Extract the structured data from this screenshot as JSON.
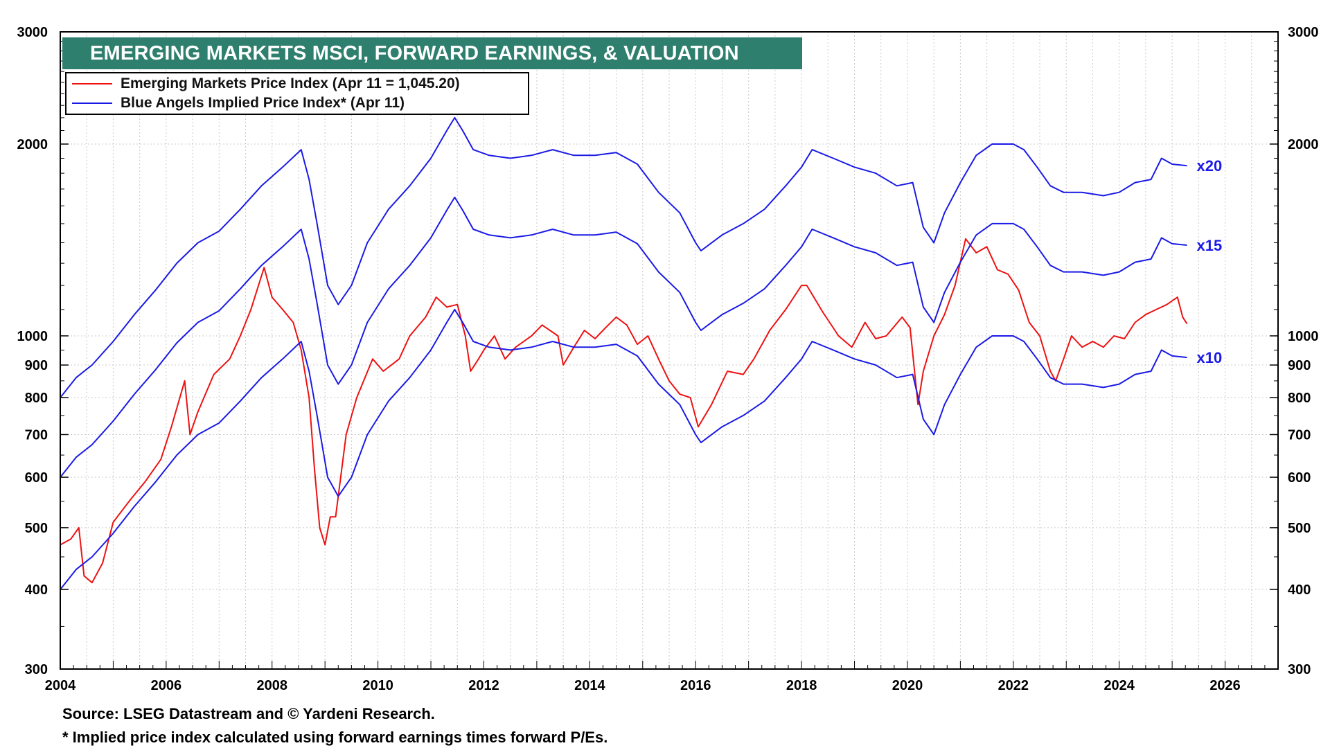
{
  "chart_data": {
    "type": "line",
    "title": "EMERGING MARKETS MSCI, FORWARD EARNINGS, & VALUATION",
    "y_scale": "log",
    "ylim": [
      300,
      3000
    ],
    "xlim": [
      2004,
      2027
    ],
    "y_ticks": [
      300,
      400,
      500,
      600,
      700,
      800,
      900,
      1000,
      2000,
      3000
    ],
    "x_ticks": [
      2004,
      2006,
      2008,
      2010,
      2012,
      2014,
      2016,
      2018,
      2020,
      2022,
      2024,
      2026
    ],
    "grid": true,
    "legend_position": "top-left",
    "legend": [
      {
        "label": "Emerging Markets Price Index (Apr 11 = 1,045.20)",
        "color": "#ee1111"
      },
      {
        "label": "Blue Angels Implied Price Index* (Apr 11)",
        "color": "#1a1ae6"
      }
    ],
    "series": [
      {
        "name": "Emerging Markets Price Index",
        "color": "#ee1111",
        "x": [
          2004.0,
          2004.2,
          2004.35,
          2004.45,
          2004.6,
          2004.8,
          2005.0,
          2005.3,
          2005.6,
          2005.9,
          2006.1,
          2006.35,
          2006.45,
          2006.6,
          2006.9,
          2007.2,
          2007.4,
          2007.6,
          2007.85,
          2008.0,
          2008.2,
          2008.4,
          2008.55,
          2008.7,
          2008.8,
          2008.9,
          2009.0,
          2009.1,
          2009.2,
          2009.4,
          2009.6,
          2009.9,
          2010.1,
          2010.4,
          2010.6,
          2010.9,
          2011.1,
          2011.3,
          2011.5,
          2011.65,
          2011.75,
          2011.9,
          2012.0,
          2012.2,
          2012.4,
          2012.6,
          2012.9,
          2013.1,
          2013.4,
          2013.5,
          2013.7,
          2013.9,
          2014.1,
          2014.3,
          2014.5,
          2014.7,
          2014.9,
          2015.1,
          2015.3,
          2015.5,
          2015.7,
          2015.9,
          2016.05,
          2016.3,
          2016.6,
          2016.9,
          2017.1,
          2017.4,
          2017.7,
          2018.0,
          2018.1,
          2018.4,
          2018.7,
          2018.95,
          2019.2,
          2019.4,
          2019.6,
          2019.9,
          2020.05,
          2020.2,
          2020.3,
          2020.5,
          2020.7,
          2020.9,
          2021.1,
          2021.3,
          2021.5,
          2021.7,
          2021.9,
          2022.1,
          2022.3,
          2022.5,
          2022.7,
          2022.8,
          2022.95,
          2023.1,
          2023.3,
          2023.5,
          2023.7,
          2023.9,
          2024.1,
          2024.3,
          2024.5,
          2024.7,
          2024.9,
          2025.1,
          2025.2,
          2025.28
        ],
        "values": [
          470,
          480,
          500,
          420,
          410,
          440,
          510,
          550,
          590,
          640,
          720,
          850,
          700,
          760,
          870,
          920,
          1000,
          1100,
          1280,
          1150,
          1100,
          1050,
          950,
          800,
          620,
          500,
          470,
          520,
          520,
          700,
          800,
          920,
          880,
          920,
          1000,
          1070,
          1150,
          1110,
          1120,
          1000,
          880,
          920,
          950,
          1000,
          920,
          960,
          1000,
          1040,
          1000,
          900,
          960,
          1020,
          990,
          1030,
          1070,
          1040,
          970,
          1000,
          920,
          850,
          810,
          800,
          720,
          780,
          880,
          870,
          920,
          1020,
          1100,
          1200,
          1200,
          1090,
          1000,
          960,
          1050,
          990,
          1000,
          1070,
          1030,
          780,
          880,
          1000,
          1080,
          1200,
          1420,
          1350,
          1380,
          1270,
          1250,
          1180,
          1050,
          1000,
          880,
          850,
          920,
          1000,
          960,
          980,
          960,
          1000,
          990,
          1050,
          1080,
          1100,
          1120,
          1150,
          1070,
          1045
        ]
      },
      {
        "name": "Blue Angels Implied Price Index x10",
        "color": "#1a1ae6",
        "label": "x10",
        "x": [
          2004.0,
          2004.3,
          2004.6,
          2005.0,
          2005.4,
          2005.8,
          2006.2,
          2006.6,
          2007.0,
          2007.4,
          2007.8,
          2008.2,
          2008.55,
          2008.7,
          2008.85,
          2009.05,
          2009.25,
          2009.5,
          2009.8,
          2010.2,
          2010.6,
          2011.0,
          2011.3,
          2011.45,
          2011.6,
          2011.8,
          2012.1,
          2012.5,
          2012.9,
          2013.3,
          2013.7,
          2014.1,
          2014.5,
          2014.9,
          2015.3,
          2015.7,
          2016.0,
          2016.1,
          2016.5,
          2016.9,
          2017.3,
          2017.7,
          2018.0,
          2018.2,
          2018.6,
          2019.0,
          2019.4,
          2019.8,
          2020.1,
          2020.3,
          2020.5,
          2020.7,
          2021.0,
          2021.3,
          2021.6,
          2022.0,
          2022.2,
          2022.45,
          2022.7,
          2022.95,
          2023.3,
          2023.7,
          2024.0,
          2024.3,
          2024.6,
          2024.8,
          2025.0,
          2025.28
        ],
        "values": [
          400,
          430,
          450,
          490,
          540,
          590,
          650,
          700,
          730,
          790,
          860,
          920,
          980,
          880,
          750,
          600,
          560,
          600,
          700,
          790,
          860,
          950,
          1050,
          1100,
          1050,
          980,
          960,
          950,
          960,
          980,
          960,
          960,
          970,
          930,
          840,
          780,
          700,
          680,
          720,
          750,
          790,
          860,
          920,
          980,
          950,
          920,
          900,
          860,
          870,
          740,
          700,
          780,
          870,
          960,
          1000,
          1000,
          980,
          920,
          860,
          840,
          840,
          830,
          840,
          870,
          880,
          950,
          930,
          925
        ]
      },
      {
        "name": "Blue Angels Implied Price Index x15",
        "color": "#1a1ae6",
        "label": "x15",
        "x": [
          2004.0,
          2004.3,
          2004.6,
          2005.0,
          2005.4,
          2005.8,
          2006.2,
          2006.6,
          2007.0,
          2007.4,
          2007.8,
          2008.2,
          2008.55,
          2008.7,
          2008.85,
          2009.05,
          2009.25,
          2009.5,
          2009.8,
          2010.2,
          2010.6,
          2011.0,
          2011.3,
          2011.45,
          2011.6,
          2011.8,
          2012.1,
          2012.5,
          2012.9,
          2013.3,
          2013.7,
          2014.1,
          2014.5,
          2014.9,
          2015.3,
          2015.7,
          2016.0,
          2016.1,
          2016.5,
          2016.9,
          2017.3,
          2017.7,
          2018.0,
          2018.2,
          2018.6,
          2019.0,
          2019.4,
          2019.8,
          2020.1,
          2020.3,
          2020.5,
          2020.7,
          2021.0,
          2021.3,
          2021.6,
          2022.0,
          2022.2,
          2022.45,
          2022.7,
          2022.95,
          2023.3,
          2023.7,
          2024.0,
          2024.3,
          2024.6,
          2024.8,
          2025.0,
          2025.28
        ],
        "values": [
          600,
          645,
          675,
          735,
          810,
          885,
          975,
          1050,
          1095,
          1185,
          1290,
          1380,
          1470,
          1320,
          1125,
          900,
          840,
          900,
          1050,
          1185,
          1290,
          1425,
          1575,
          1650,
          1575,
          1470,
          1440,
          1425,
          1440,
          1470,
          1440,
          1440,
          1455,
          1395,
          1260,
          1170,
          1050,
          1020,
          1080,
          1125,
          1185,
          1290,
          1380,
          1470,
          1425,
          1380,
          1350,
          1290,
          1305,
          1110,
          1050,
          1170,
          1305,
          1440,
          1500,
          1500,
          1470,
          1380,
          1290,
          1260,
          1260,
          1245,
          1260,
          1305,
          1320,
          1425,
          1395,
          1388
        ]
      },
      {
        "name": "Blue Angels Implied Price Index x20",
        "color": "#1a1ae6",
        "label": "x20",
        "x": [
          2004.0,
          2004.3,
          2004.6,
          2005.0,
          2005.4,
          2005.8,
          2006.2,
          2006.6,
          2007.0,
          2007.4,
          2007.8,
          2008.2,
          2008.55,
          2008.7,
          2008.85,
          2009.05,
          2009.25,
          2009.5,
          2009.8,
          2010.2,
          2010.6,
          2011.0,
          2011.3,
          2011.45,
          2011.6,
          2011.8,
          2012.1,
          2012.5,
          2012.9,
          2013.3,
          2013.7,
          2014.1,
          2014.5,
          2014.9,
          2015.3,
          2015.7,
          2016.0,
          2016.1,
          2016.5,
          2016.9,
          2017.3,
          2017.7,
          2018.0,
          2018.2,
          2018.6,
          2019.0,
          2019.4,
          2019.8,
          2020.1,
          2020.3,
          2020.5,
          2020.7,
          2021.0,
          2021.3,
          2021.6,
          2022.0,
          2022.2,
          2022.45,
          2022.7,
          2022.95,
          2023.3,
          2023.7,
          2024.0,
          2024.3,
          2024.6,
          2024.8,
          2025.0,
          2025.28
        ],
        "values": [
          800,
          860,
          900,
          980,
          1080,
          1180,
          1300,
          1400,
          1460,
          1580,
          1720,
          1840,
          1960,
          1760,
          1500,
          1200,
          1120,
          1200,
          1400,
          1580,
          1720,
          1900,
          2100,
          2200,
          2100,
          1960,
          1920,
          1900,
          1920,
          1960,
          1920,
          1920,
          1940,
          1860,
          1680,
          1560,
          1400,
          1360,
          1440,
          1500,
          1580,
          1720,
          1840,
          1960,
          1900,
          1840,
          1800,
          1720,
          1740,
          1480,
          1400,
          1560,
          1740,
          1920,
          2000,
          2000,
          1960,
          1840,
          1720,
          1680,
          1680,
          1660,
          1680,
          1740,
          1760,
          1900,
          1860,
          1850
        ]
      }
    ]
  },
  "footnotes": {
    "source": "Source: LSEG Datastream and © Yardeni Research.",
    "note": "* Implied price index calculated using forward earnings times forward P/Es."
  }
}
